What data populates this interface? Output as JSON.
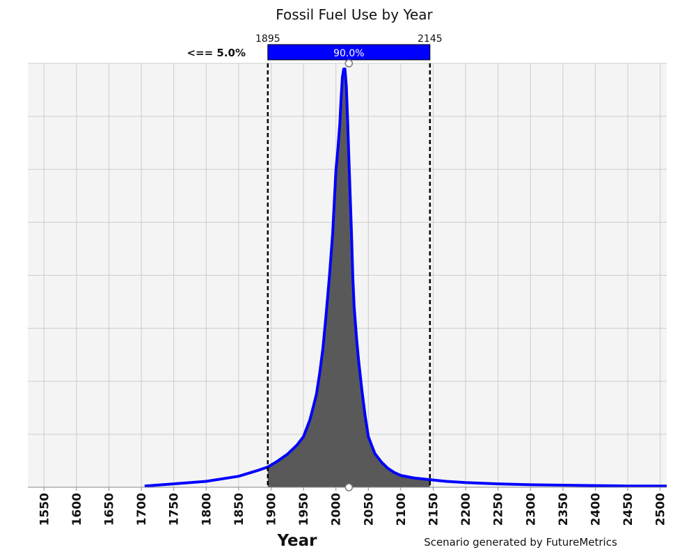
{
  "chart_data": {
    "type": "area",
    "title": "Fossil Fuel Use by Year",
    "xlabel": "Year",
    "ylabel": "",
    "xlim": [
      1525,
      2510
    ],
    "ylim": [
      0,
      1
    ],
    "x_ticks": [
      "1550",
      "1600",
      "1650",
      "1700",
      "1750",
      "1800",
      "1850",
      "1900",
      "1950",
      "2000",
      "2050",
      "2100",
      "2150",
      "2200",
      "2250",
      "2300",
      "2350",
      "2400",
      "2450",
      "2500"
    ],
    "grid": true,
    "series": [
      {
        "color": "#0000ff",
        "fill": "#595959",
        "x": [
          1705,
          1750,
          1800,
          1850,
          1880,
          1895,
          1910,
          1925,
          1940,
          1950,
          1955,
          1960,
          1965,
          1970,
          1975,
          1980,
          1985,
          1990,
          1995,
          2000,
          2003,
          2006,
          2008,
          2010,
          2012,
          2014,
          2016,
          2018,
          2020,
          2022,
          2024,
          2026,
          2028,
          2030,
          2032,
          2035,
          2040,
          2045,
          2050,
          2055,
          2060,
          2070,
          2080,
          2090,
          2100,
          2120,
          2145,
          2170,
          2200,
          2250,
          2300,
          2350,
          2400,
          2450,
          2510
        ],
        "y": [
          0.003,
          0.008,
          0.014,
          0.026,
          0.04,
          0.048,
          0.062,
          0.078,
          0.1,
          0.12,
          0.14,
          0.16,
          0.19,
          0.22,
          0.27,
          0.33,
          0.41,
          0.5,
          0.6,
          0.75,
          0.8,
          0.86,
          0.92,
          0.97,
          0.99,
          0.99,
          0.95,
          0.87,
          0.78,
          0.69,
          0.6,
          0.5,
          0.43,
          0.39,
          0.35,
          0.3,
          0.23,
          0.17,
          0.12,
          0.1,
          0.08,
          0.06,
          0.045,
          0.035,
          0.028,
          0.022,
          0.018,
          0.014,
          0.011,
          0.008,
          0.006,
          0.005,
          0.004,
          0.003,
          0.003
        ]
      }
    ],
    "interval": {
      "low": 1895,
      "high": 2145,
      "low_label": "1895",
      "high_label": "2145",
      "center_label": "90.0%",
      "left_label": "<== 5.0%",
      "band_color": "#0000ff"
    }
  },
  "footer": {
    "credit": "Scenario generated by FutureMetrics"
  }
}
